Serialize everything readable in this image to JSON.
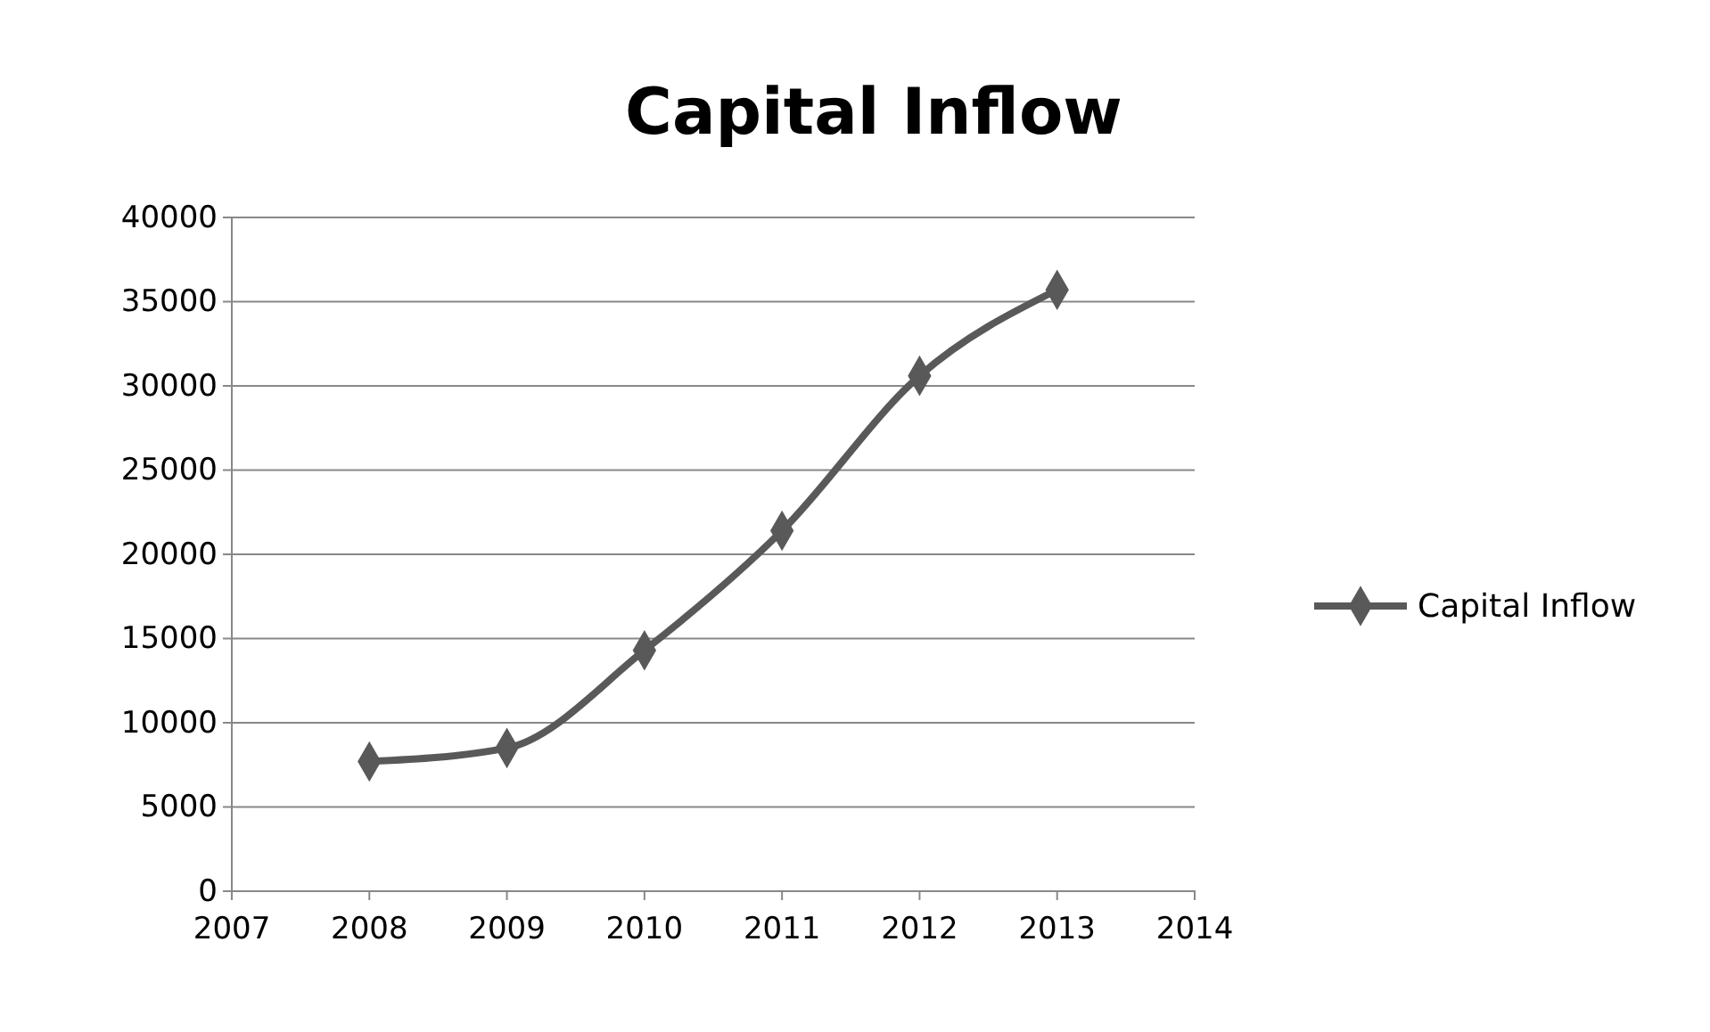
{
  "chart_data": {
    "type": "line",
    "title": "Capital Inflow",
    "x": [
      2008,
      2009,
      2010,
      2011,
      2012,
      2013
    ],
    "series": [
      {
        "name": "Capital Inflow",
        "color": "#595959",
        "values": [
          7700,
          8500,
          14300,
          21400,
          30600,
          35700
        ]
      }
    ],
    "xlim": [
      2007,
      2014
    ],
    "xticks": [
      2007,
      2008,
      2009,
      2010,
      2011,
      2012,
      2013,
      2014
    ],
    "ylim": [
      0,
      40000
    ],
    "yticks": [
      0,
      5000,
      10000,
      15000,
      20000,
      25000,
      30000,
      35000,
      40000
    ],
    "grid": "y",
    "legend": "right",
    "marker": "diamond",
    "line_style": "solid"
  }
}
